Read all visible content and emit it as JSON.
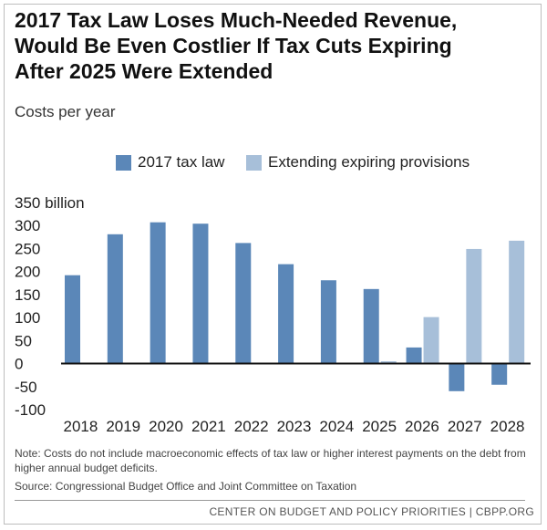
{
  "header": {
    "title_lines": [
      "2017 Tax Law Loses Much-Needed Revenue,",
      "Would Be Even Costlier If Tax Cuts Expiring",
      "After 2025 Were Extended"
    ],
    "subtitle": "Costs per year"
  },
  "colors": {
    "tax_law": "#5b87b8",
    "extending": "#a7bfd9",
    "zero_line": "#111111"
  },
  "chart_data": {
    "type": "bar",
    "categories": [
      "2018",
      "2019",
      "2020",
      "2021",
      "2022",
      "2023",
      "2024",
      "2025",
      "2026",
      "2027",
      "2028"
    ],
    "series": [
      {
        "name": "2017 tax law",
        "values": [
          192,
          281,
          307,
          304,
          262,
          216,
          181,
          162,
          35,
          -60,
          -46
        ]
      },
      {
        "name": "Extending expiring provisions",
        "values": [
          null,
          null,
          null,
          null,
          null,
          null,
          null,
          5,
          101,
          249,
          267
        ]
      }
    ],
    "yticks": [
      "350 billion",
      "300",
      "250",
      "200",
      "150",
      "100",
      "50",
      "0",
      "-50",
      "-100"
    ],
    "ytick_values": [
      350,
      300,
      250,
      200,
      150,
      100,
      50,
      0,
      -50,
      -100
    ],
    "ylim": [
      -100,
      350
    ],
    "xlabel": "",
    "ylabel": "",
    "grid": false,
    "legend_position": "top"
  },
  "note": "Note: Costs do not include macroeconomic effects of tax law or higher interest payments on the debt from higher annual budget deficits.",
  "source": "Source: Congressional Budget Office and Joint Committee on Taxation",
  "footer": "CENTER ON BUDGET AND POLICY PRIORITIES | CBPP.ORG"
}
